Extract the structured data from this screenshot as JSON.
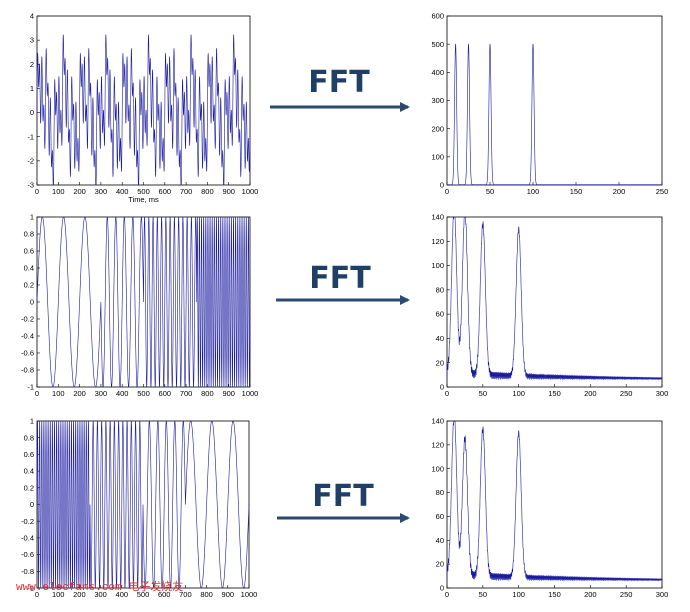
{
  "arrow_label": "FFT",
  "watermark": "www.elecfans.com 电子发烧友",
  "colors": {
    "signal": "#1a1aa0",
    "arrow": "#2b4a6e",
    "frame": "#000000"
  },
  "chart_data": [
    {
      "type": "line",
      "row": 1,
      "role": "time-domain",
      "xlabel": "Time, ms",
      "ylabel": "",
      "xlim": [
        0,
        1000
      ],
      "ylim": [
        -3,
        4
      ],
      "xticks": [
        0,
        100,
        200,
        300,
        400,
        500,
        600,
        700,
        800,
        900,
        1000
      ],
      "yticks": [
        -3,
        -2,
        -1,
        0,
        1,
        2,
        3,
        4
      ],
      "signal": {
        "kind": "sum",
        "components": [
          {
            "freq_hz": 10,
            "amp": 1
          },
          {
            "freq_hz": 25,
            "amp": 1
          },
          {
            "freq_hz": 50,
            "amp": 1
          },
          {
            "freq_hz": 100,
            "amp": 1
          }
        ]
      }
    },
    {
      "type": "line",
      "row": 1,
      "role": "spectrum",
      "xlabel": "",
      "ylabel": "",
      "xlim": [
        0,
        250
      ],
      "ylim": [
        0,
        600
      ],
      "xticks": [
        0,
        50,
        100,
        150,
        200,
        250
      ],
      "yticks": [
        0,
        100,
        200,
        300,
        400,
        500,
        600
      ],
      "peaks": [
        {
          "x": 10,
          "y": 500
        },
        {
          "x": 25,
          "y": 500
        },
        {
          "x": 50,
          "y": 500
        },
        {
          "x": 100,
          "y": 500
        }
      ],
      "peak_width": 1.2,
      "baseline": 1
    },
    {
      "type": "line",
      "row": 2,
      "role": "time-domain",
      "xlabel": "",
      "ylabel": "",
      "xlim": [
        0,
        1000
      ],
      "ylim": [
        -1,
        1
      ],
      "xticks": [
        0,
        100,
        200,
        300,
        400,
        500,
        600,
        700,
        800,
        900,
        1000
      ],
      "yticks": [
        -1,
        -0.8,
        -0.6,
        -0.4,
        -0.2,
        0,
        0.2,
        0.4,
        0.6,
        0.8,
        1
      ],
      "signal": {
        "kind": "segments",
        "segments": [
          {
            "from": 0,
            "to": 300,
            "freq_hz": 10
          },
          {
            "from": 300,
            "to": 500,
            "freq_hz": 25
          },
          {
            "from": 500,
            "to": 750,
            "freq_hz": 50
          },
          {
            "from": 750,
            "to": 1000,
            "freq_hz": 100
          }
        ]
      }
    },
    {
      "type": "line",
      "row": 2,
      "role": "spectrum",
      "xlabel": "",
      "ylabel": "",
      "xlim": [
        0,
        300
      ],
      "ylim": [
        0,
        140
      ],
      "xticks": [
        0,
        50,
        100,
        150,
        200,
        250,
        300
      ],
      "yticks": [
        0,
        20,
        40,
        60,
        80,
        100,
        120,
        140
      ],
      "peaks": [
        {
          "x": 10,
          "y": 135
        },
        {
          "x": 25,
          "y": 135
        },
        {
          "x": 50,
          "y": 124
        },
        {
          "x": 100,
          "y": 121
        }
      ],
      "peak_width": 3.5,
      "baseline": 6
    },
    {
      "type": "line",
      "row": 3,
      "role": "time-domain",
      "xlabel": "",
      "ylabel": "",
      "xlim": [
        0,
        1000
      ],
      "ylim": [
        -1,
        1
      ],
      "xticks": [
        0,
        100,
        200,
        300,
        400,
        500,
        600,
        700,
        800,
        900,
        1000
      ],
      "yticks": [
        -1,
        -0.8,
        -0.6,
        -0.4,
        -0.2,
        0,
        0.2,
        0.4,
        0.6,
        0.8,
        1
      ],
      "signal": {
        "kind": "segments",
        "segments": [
          {
            "from": 0,
            "to": 250,
            "freq_hz": 100
          },
          {
            "from": 250,
            "to": 500,
            "freq_hz": 50
          },
          {
            "from": 500,
            "to": 700,
            "freq_hz": 25
          },
          {
            "from": 700,
            "to": 1000,
            "freq_hz": 10
          }
        ]
      }
    },
    {
      "type": "line",
      "row": 3,
      "role": "spectrum",
      "xlabel": "",
      "ylabel": "",
      "xlim": [
        0,
        300
      ],
      "ylim": [
        0,
        140
      ],
      "xticks": [
        0,
        50,
        100,
        150,
        200,
        250,
        300
      ],
      "yticks": [
        0,
        20,
        40,
        60,
        80,
        100,
        120,
        140
      ],
      "peaks": [
        {
          "x": 10,
          "y": 133
        },
        {
          "x": 25,
          "y": 115
        },
        {
          "x": 50,
          "y": 123
        },
        {
          "x": 100,
          "y": 121
        }
      ],
      "peak_width": 3.5,
      "baseline": 6
    }
  ]
}
